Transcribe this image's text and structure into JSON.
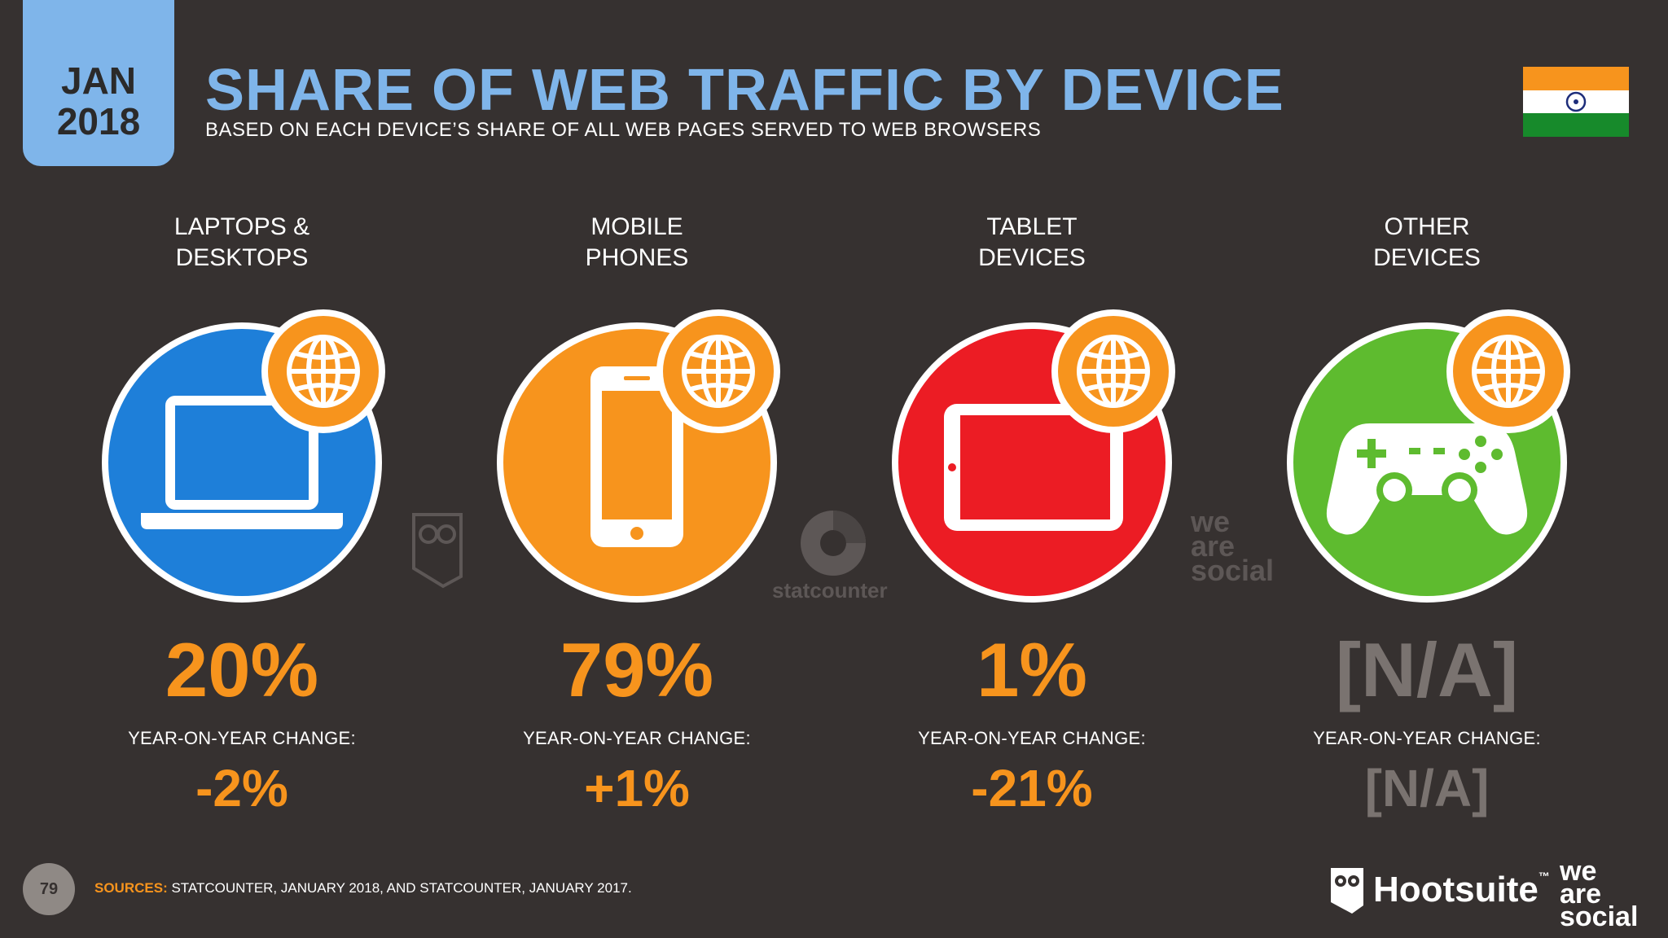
{
  "header": {
    "month": "JAN",
    "year": "2018",
    "title": "SHARE OF WEB TRAFFIC BY DEVICE",
    "subtitle": "BASED ON EACH DEVICE’S SHARE OF ALL WEB PAGES SERVED TO WEB BROWSERS",
    "flag_icon": "india-flag-icon"
  },
  "devices": [
    {
      "label_line1": "LAPTOPS &",
      "label_line2": "DESKTOPS",
      "share": "20%",
      "yoy_label": "YEAR-ON-YEAR CHANGE:",
      "yoy": "-2%",
      "color": "#1e7fd9",
      "icon": "laptop-icon"
    },
    {
      "label_line1": "MOBILE",
      "label_line2": "PHONES",
      "share": "79%",
      "yoy_label": "YEAR-ON-YEAR CHANGE:",
      "yoy": "+1%",
      "color": "#f7941d",
      "icon": "mobile-phone-icon"
    },
    {
      "label_line1": "TABLET",
      "label_line2": "DEVICES",
      "share": "1%",
      "yoy_label": "YEAR-ON-YEAR CHANGE:",
      "yoy": "-21%",
      "color": "#ec1c24",
      "icon": "tablet-icon"
    },
    {
      "label_line1": "OTHER",
      "label_line2": "DEVICES",
      "share": "[N/A]",
      "yoy_label": "YEAR-ON-YEAR CHANGE:",
      "yoy": "[N/A]",
      "color": "#5ebb2f",
      "icon": "game-controller-icon"
    }
  ],
  "watermarks": {
    "statcounter": "statcounter",
    "we": "we",
    "are": "are",
    "social": "social"
  },
  "footer": {
    "page_number": "79",
    "sources_label": "SOURCES:",
    "sources_text": " STATCOUNTER, JANUARY 2018, AND STATCOUNTER, JANUARY 2017.",
    "hootsuite": "Hootsuite",
    "tm": "™",
    "we": "we",
    "are": "are",
    "social": "social"
  }
}
